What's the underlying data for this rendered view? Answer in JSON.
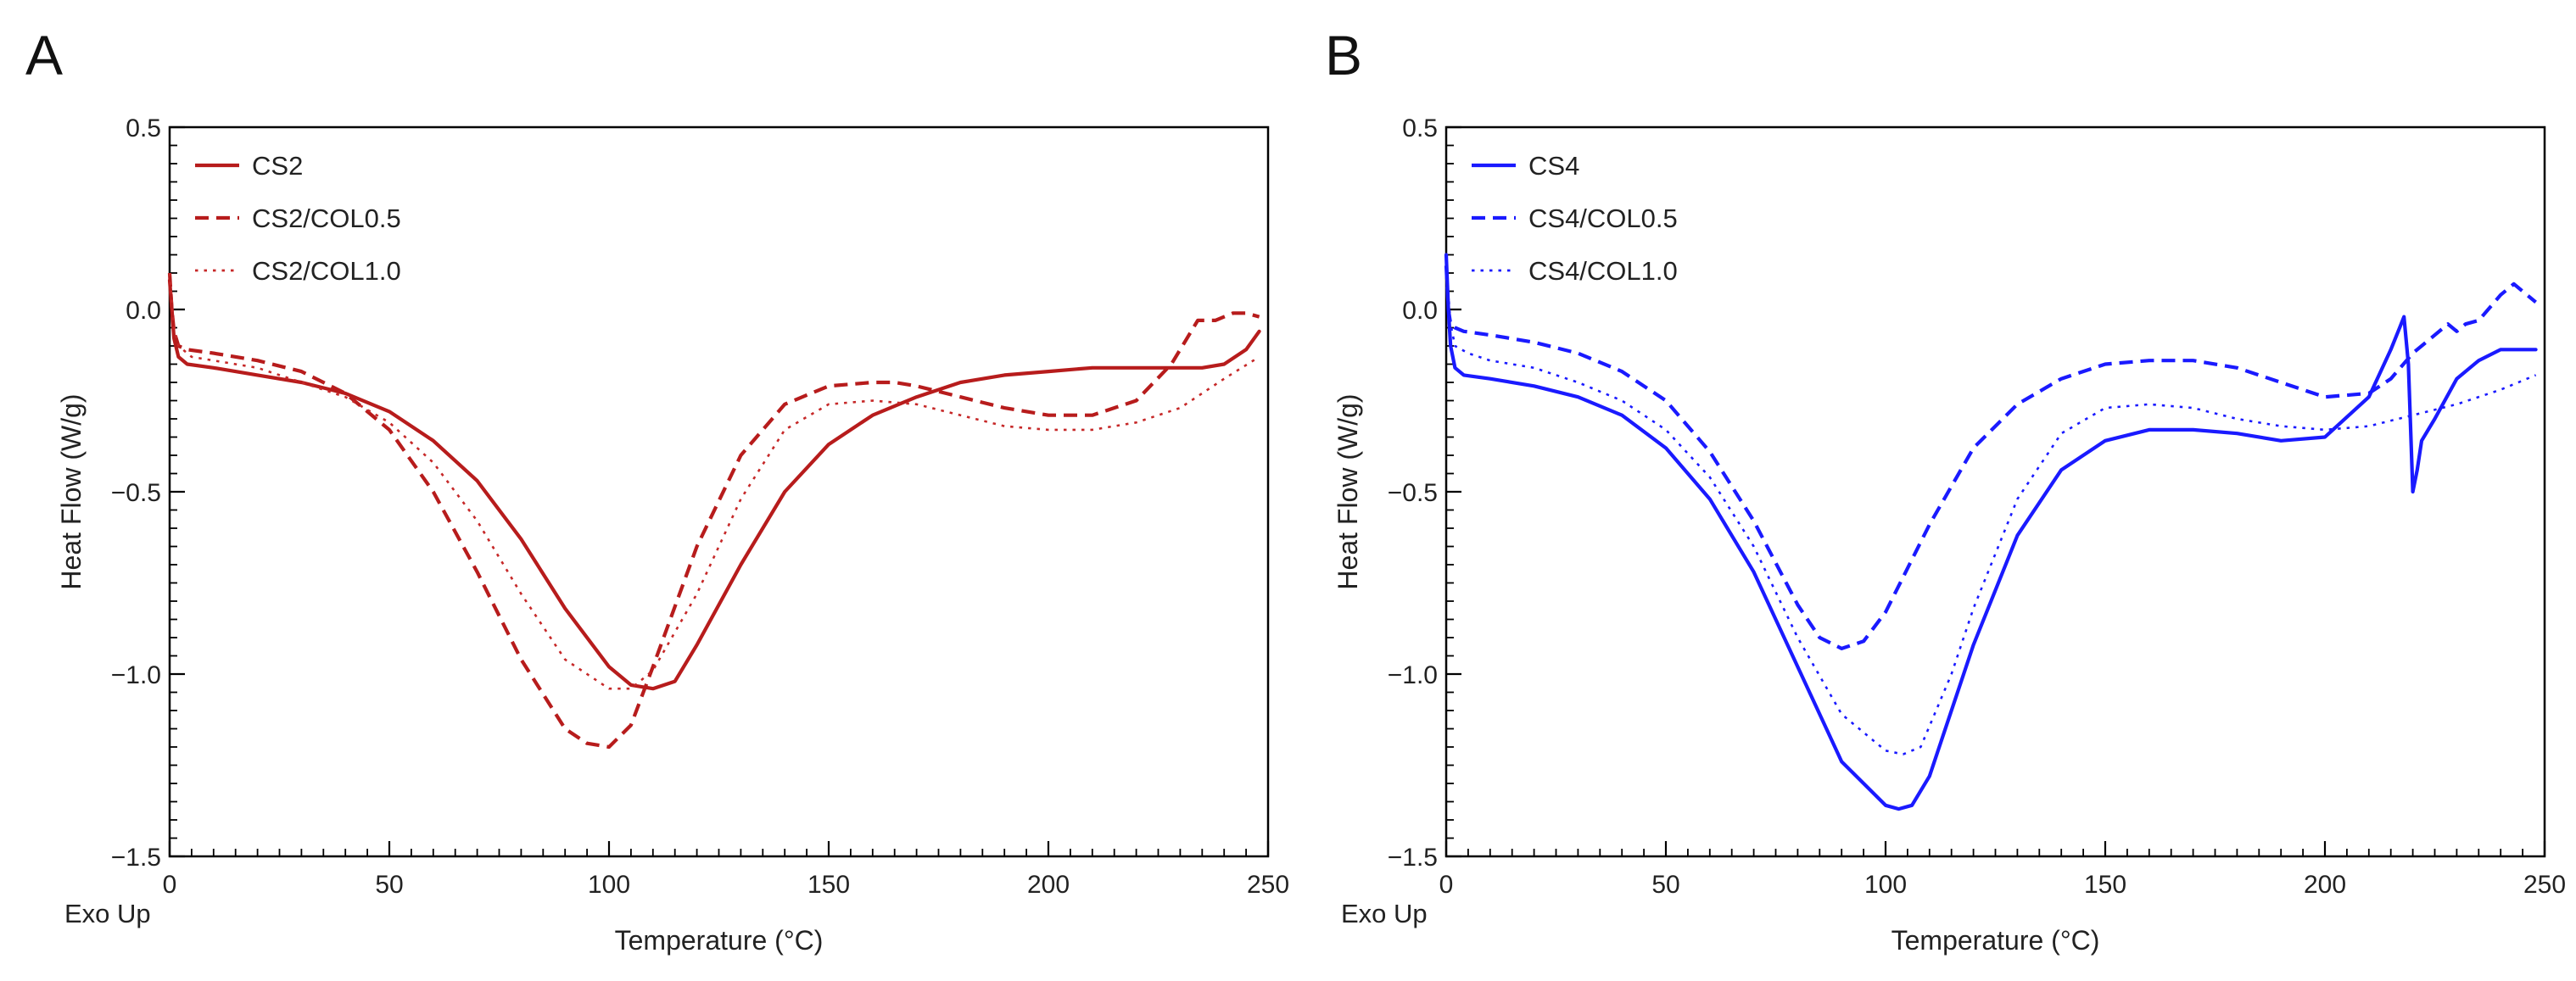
{
  "figure": {
    "panels": [
      "A",
      "B"
    ]
  },
  "chart_data": [
    {
      "panel": "A",
      "type": "line",
      "title": "",
      "xlabel": "Temperature (°C)",
      "ylabel": "Heat Flow (W/g)",
      "corner_note": "Exo Up",
      "xlim": [
        0,
        250
      ],
      "ylim": [
        -1.5,
        0.5
      ],
      "xticks": [
        0,
        50,
        100,
        150,
        200,
        250
      ],
      "xtick_labels": [
        "0",
        "50",
        "100",
        "150",
        "200",
        "250"
      ],
      "yticks": [
        0.5,
        0.0,
        -0.5,
        -1.0,
        -1.5
      ],
      "ytick_labels": [
        "0.5",
        "0.0",
        "−0.5",
        "−1.0",
        "−1.5"
      ],
      "grid": false,
      "legend": "top-left",
      "series": [
        {
          "name": "CS2",
          "color": "#b71c1c",
          "dash": "solid",
          "x": [
            0,
            0.5,
            1,
            2,
            4,
            10,
            20,
            30,
            40,
            50,
            60,
            70,
            80,
            90,
            100,
            105,
            110,
            115,
            120,
            130,
            140,
            150,
            160,
            170,
            180,
            190,
            200,
            210,
            220,
            230,
            235,
            240,
            245,
            248
          ],
          "y": [
            0.08,
            0.0,
            -0.08,
            -0.13,
            -0.15,
            -0.16,
            -0.18,
            -0.2,
            -0.23,
            -0.28,
            -0.36,
            -0.47,
            -0.63,
            -0.82,
            -0.98,
            -1.03,
            -1.04,
            -1.02,
            -0.92,
            -0.7,
            -0.5,
            -0.37,
            -0.29,
            -0.24,
            -0.2,
            -0.18,
            -0.17,
            -0.16,
            -0.16,
            -0.16,
            -0.16,
            -0.15,
            -0.11,
            -0.06
          ]
        },
        {
          "name": "CS2/COL0.5",
          "color": "#b71c1c",
          "dash": "dashed",
          "x": [
            0,
            0.5,
            1,
            2,
            4,
            10,
            20,
            30,
            40,
            50,
            60,
            70,
            80,
            90,
            95,
            100,
            105,
            110,
            120,
            130,
            140,
            150,
            160,
            165,
            170,
            180,
            190,
            200,
            210,
            220,
            228,
            232,
            234,
            238,
            242,
            245,
            248
          ],
          "y": [
            0.1,
            0.0,
            -0.06,
            -0.1,
            -0.11,
            -0.12,
            -0.14,
            -0.17,
            -0.23,
            -0.33,
            -0.5,
            -0.72,
            -0.96,
            -1.15,
            -1.19,
            -1.2,
            -1.14,
            -0.98,
            -0.65,
            -0.4,
            -0.26,
            -0.21,
            -0.2,
            -0.2,
            -0.21,
            -0.24,
            -0.27,
            -0.29,
            -0.29,
            -0.25,
            -0.15,
            -0.07,
            -0.03,
            -0.03,
            -0.01,
            -0.01,
            -0.02
          ]
        },
        {
          "name": "CS2/COL1.0",
          "color": "#c62828",
          "dash": "dotted",
          "x": [
            0,
            1,
            2,
            5,
            10,
            20,
            30,
            40,
            50,
            60,
            70,
            80,
            90,
            100,
            105,
            110,
            120,
            130,
            140,
            150,
            160,
            170,
            180,
            190,
            200,
            210,
            220,
            230,
            240,
            248
          ],
          "y": [
            0.1,
            -0.05,
            -0.1,
            -0.13,
            -0.14,
            -0.16,
            -0.2,
            -0.24,
            -0.31,
            -0.42,
            -0.58,
            -0.78,
            -0.96,
            -1.04,
            -1.04,
            -0.99,
            -0.78,
            -0.52,
            -0.33,
            -0.26,
            -0.25,
            -0.26,
            -0.29,
            -0.32,
            -0.33,
            -0.33,
            -0.31,
            -0.27,
            -0.19,
            -0.13
          ]
        }
      ]
    },
    {
      "panel": "B",
      "type": "line",
      "title": "",
      "xlabel": "Temperature (°C)",
      "ylabel": "Heat Flow (W/g)",
      "corner_note": "Exo Up",
      "xlim": [
        0,
        250
      ],
      "ylim": [
        -1.5,
        0.5
      ],
      "xticks": [
        0,
        50,
        100,
        150,
        200,
        250
      ],
      "xtick_labels": [
        "0",
        "50",
        "100",
        "150",
        "200",
        "250"
      ],
      "yticks": [
        0.5,
        0.0,
        -0.5,
        -1.0,
        -1.5
      ],
      "ytick_labels": [
        "0.5",
        "0.0",
        "−0.5",
        "−1.0",
        "−1.5"
      ],
      "grid": false,
      "legend": "top-left",
      "series": [
        {
          "name": "CS4",
          "color": "#1a1aff",
          "dash": "solid",
          "x": [
            0,
            0.5,
            1,
            2,
            4,
            10,
            20,
            30,
            40,
            50,
            60,
            70,
            80,
            90,
            100,
            103,
            106,
            110,
            120,
            130,
            140,
            150,
            160,
            170,
            180,
            190,
            200,
            210,
            215,
            217,
            218,
            219,
            220,
            221,
            222,
            225,
            230,
            235,
            240,
            245,
            248
          ],
          "y": [
            0.15,
            0.0,
            -0.1,
            -0.16,
            -0.18,
            -0.19,
            -0.21,
            -0.24,
            -0.29,
            -0.38,
            -0.52,
            -0.72,
            -0.98,
            -1.24,
            -1.36,
            -1.37,
            -1.36,
            -1.28,
            -0.92,
            -0.62,
            -0.44,
            -0.36,
            -0.33,
            -0.33,
            -0.34,
            -0.36,
            -0.35,
            -0.24,
            -0.11,
            -0.05,
            -0.02,
            -0.15,
            -0.5,
            -0.44,
            -0.36,
            -0.3,
            -0.19,
            -0.14,
            -0.11,
            -0.11,
            -0.11
          ]
        },
        {
          "name": "CS4/COL0.5",
          "color": "#1a1aff",
          "dash": "dashed",
          "x": [
            0,
            0.5,
            1,
            2,
            4,
            10,
            20,
            30,
            40,
            50,
            60,
            70,
            80,
            85,
            90,
            95,
            100,
            110,
            120,
            130,
            140,
            150,
            160,
            170,
            180,
            190,
            200,
            210,
            215,
            220,
            225,
            228,
            230,
            232,
            235,
            240,
            243,
            245,
            248
          ],
          "y": [
            0.12,
            0.0,
            -0.04,
            -0.05,
            -0.06,
            -0.07,
            -0.09,
            -0.12,
            -0.17,
            -0.25,
            -0.39,
            -0.58,
            -0.81,
            -0.9,
            -0.93,
            -0.91,
            -0.83,
            -0.59,
            -0.38,
            -0.26,
            -0.19,
            -0.15,
            -0.14,
            -0.14,
            -0.16,
            -0.2,
            -0.24,
            -0.23,
            -0.19,
            -0.12,
            -0.07,
            -0.04,
            -0.06,
            -0.04,
            -0.03,
            0.04,
            0.07,
            0.05,
            0.02
          ]
        },
        {
          "name": "CS4/COL1.0",
          "color": "#1a1aff",
          "dash": "dotted",
          "x": [
            0,
            1,
            2,
            5,
            10,
            20,
            30,
            40,
            50,
            60,
            70,
            80,
            90,
            100,
            104,
            108,
            115,
            120,
            130,
            140,
            150,
            160,
            170,
            180,
            190,
            200,
            210,
            220,
            230,
            240,
            248
          ],
          "y": [
            0.12,
            -0.04,
            -0.1,
            -0.12,
            -0.14,
            -0.16,
            -0.2,
            -0.25,
            -0.33,
            -0.46,
            -0.65,
            -0.9,
            -1.11,
            -1.21,
            -1.22,
            -1.2,
            -1.0,
            -0.82,
            -0.52,
            -0.34,
            -0.27,
            -0.26,
            -0.27,
            -0.3,
            -0.32,
            -0.33,
            -0.32,
            -0.29,
            -0.26,
            -0.22,
            -0.18
          ]
        }
      ]
    }
  ]
}
